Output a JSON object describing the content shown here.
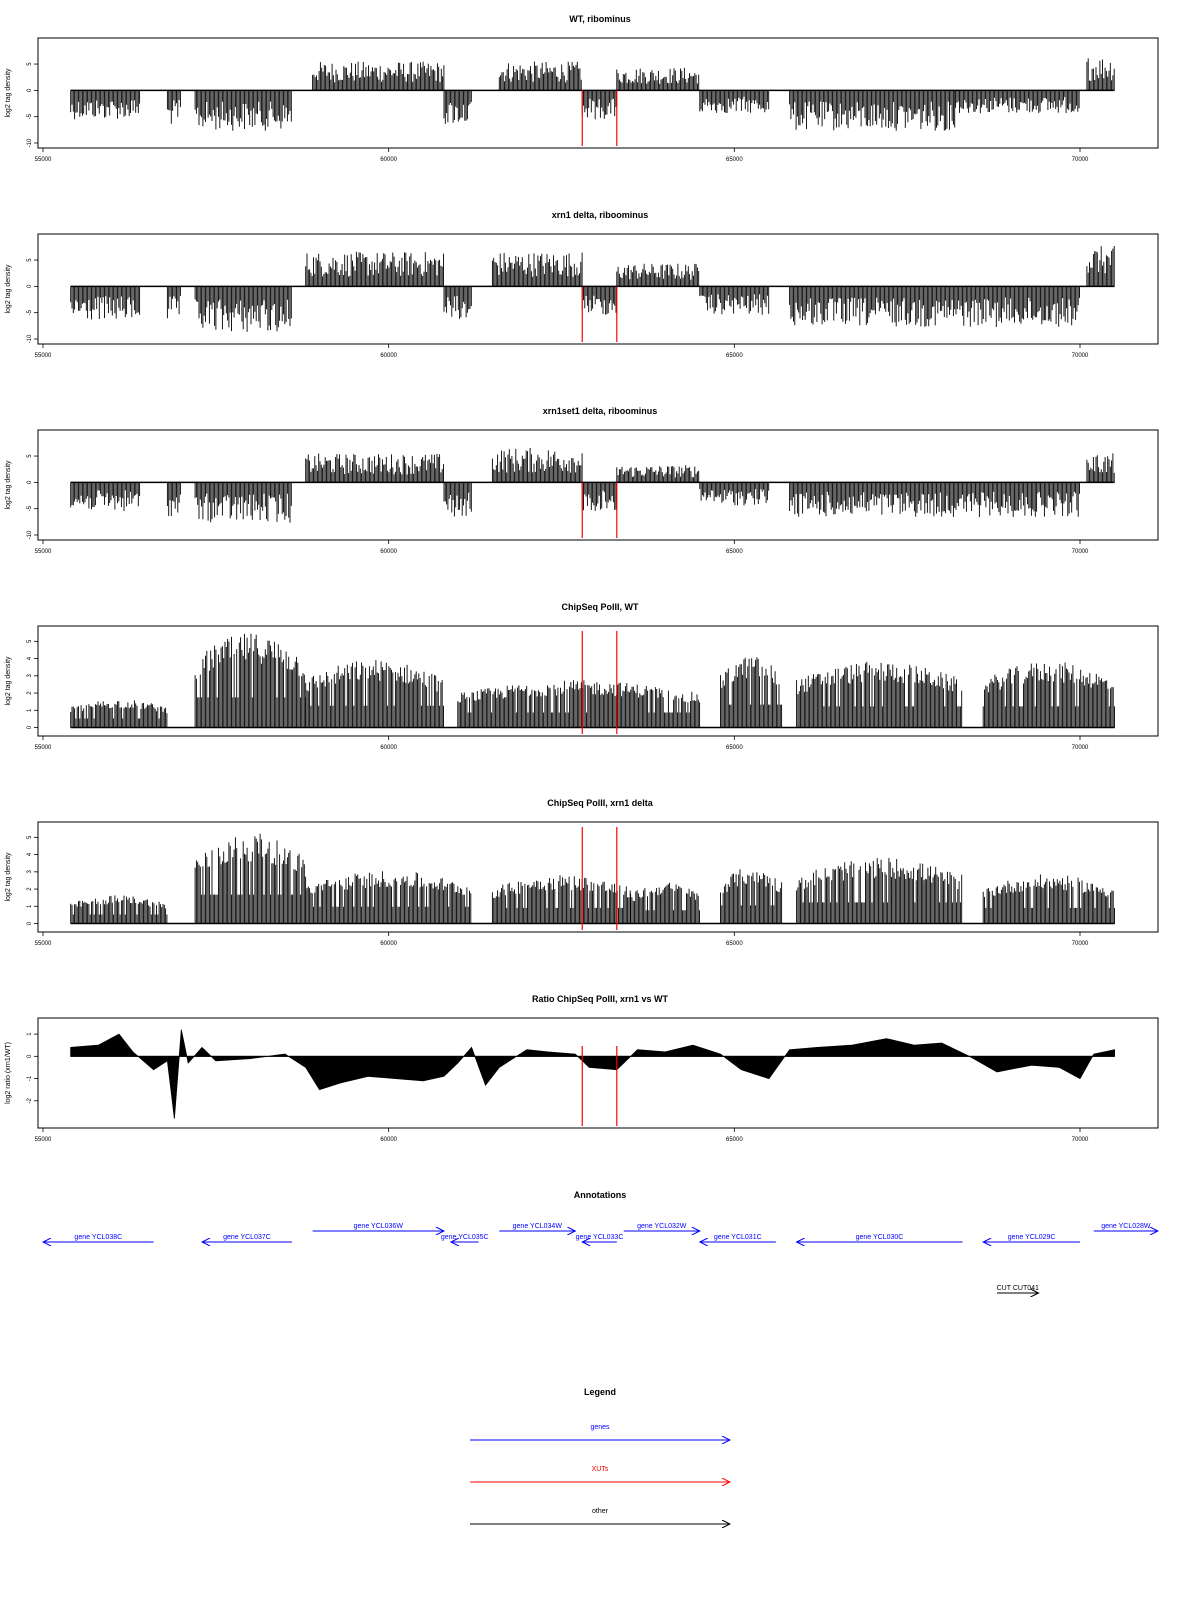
{
  "chart_data": {
    "type": "area",
    "xlim": [
      55000,
      71000
    ],
    "x_ticks": [
      "55000",
      "60000",
      "65000",
      "70000"
    ],
    "panels": [
      {
        "title": "WT, ribominus",
        "ylabel": "log2 tag density",
        "ylim": [
          -10,
          9
        ],
        "y_ticks": [
          "-10",
          "-5",
          "0",
          "5"
        ],
        "segments": [
          {
            "x": [
              55400,
              56400
            ],
            "value": -5
          },
          {
            "x": [
              56800,
              57000
            ],
            "value": -6
          },
          {
            "x": [
              57200,
              58600
            ],
            "value": -7
          },
          {
            "x": [
              58900,
              60800
            ],
            "value": 5
          },
          {
            "x": [
              60800,
              61200
            ],
            "value": -6
          },
          {
            "x": [
              61600,
              62800
            ],
            "value": 5
          },
          {
            "x": [
              62800,
              63300
            ],
            "value": -5
          },
          {
            "x": [
              63300,
              64500
            ],
            "value": 4
          },
          {
            "x": [
              64500,
              65500
            ],
            "value": -4
          },
          {
            "x": [
              65800,
              68200
            ],
            "value": -7
          },
          {
            "x": [
              68200,
              70000
            ],
            "value": -4
          },
          {
            "x": [
              70100,
              70500
            ],
            "value": 6
          }
        ]
      },
      {
        "title": "xrn1 delta, riboominus",
        "ylabel": "log2 tag density",
        "ylim": [
          -10,
          9
        ],
        "y_ticks": [
          "-10",
          "-5",
          "0",
          "5"
        ],
        "segments": [
          {
            "x": [
              55400,
              56400
            ],
            "value": -6
          },
          {
            "x": [
              56800,
              57000
            ],
            "value": -6
          },
          {
            "x": [
              57200,
              58600
            ],
            "value": -8
          },
          {
            "x": [
              58800,
              60800
            ],
            "value": 6
          },
          {
            "x": [
              60800,
              61200
            ],
            "value": -6
          },
          {
            "x": [
              61500,
              62800
            ],
            "value": 6
          },
          {
            "x": [
              62800,
              63300
            ],
            "value": -5
          },
          {
            "x": [
              63300,
              64500
            ],
            "value": 4
          },
          {
            "x": [
              64500,
              65500
            ],
            "value": -5
          },
          {
            "x": [
              65800,
              70000
            ],
            "value": -7
          },
          {
            "x": [
              70100,
              70500
            ],
            "value": 7
          }
        ]
      },
      {
        "title": "xrn1set1 delta, riboominus",
        "ylabel": "log2 tag density",
        "ylim": [
          -10,
          9
        ],
        "y_ticks": [
          "-10",
          "-5",
          "0",
          "5"
        ],
        "segments": [
          {
            "x": [
              55400,
              56400
            ],
            "value": -5
          },
          {
            "x": [
              56800,
              57000
            ],
            "value": -6
          },
          {
            "x": [
              57200,
              58600
            ],
            "value": -7
          },
          {
            "x": [
              58800,
              60800
            ],
            "value": 5
          },
          {
            "x": [
              60800,
              61200
            ],
            "value": -6
          },
          {
            "x": [
              61500,
              62800
            ],
            "value": 6
          },
          {
            "x": [
              62800,
              63300
            ],
            "value": -5
          },
          {
            "x": [
              63300,
              64500
            ],
            "value": 3
          },
          {
            "x": [
              64500,
              65500
            ],
            "value": -4
          },
          {
            "x": [
              65800,
              70000
            ],
            "value": -6
          },
          {
            "x": [
              70100,
              70500
            ],
            "value": 5
          }
        ]
      },
      {
        "title": "ChipSeq PolII, WT",
        "ylabel": "log2 tag density",
        "ylim": [
          -0.2,
          5.6
        ],
        "y_ticks": [
          "0",
          "1",
          "2",
          "3",
          "4",
          "5"
        ],
        "segments": [
          {
            "x": [
              55400,
              56800
            ],
            "value": 1.5
          },
          {
            "x": [
              57200,
              58800
            ],
            "value": 5.0
          },
          {
            "x": [
              58800,
              60800
            ],
            "value": 3.6
          },
          {
            "x": [
              61000,
              64500
            ],
            "value": 2.5
          },
          {
            "x": [
              64800,
              65700
            ],
            "value": 3.8
          },
          {
            "x": [
              65900,
              68300
            ],
            "value": 3.5
          },
          {
            "x": [
              68600,
              70500
            ],
            "value": 3.5
          }
        ]
      },
      {
        "title": "ChipSeq PolII, xrn1 delta",
        "ylabel": "log2 tag density",
        "ylim": [
          -0.2,
          5.6
        ],
        "y_ticks": [
          "0",
          "1",
          "2",
          "3",
          "4",
          "5"
        ],
        "segments": [
          {
            "x": [
              55400,
              56800
            ],
            "value": 1.5
          },
          {
            "x": [
              57200,
              58800
            ],
            "value": 4.8
          },
          {
            "x": [
              58800,
              61200
            ],
            "value": 2.8
          },
          {
            "x": [
              61500,
              63500
            ],
            "value": 2.6
          },
          {
            "x": [
              63500,
              64500
            ],
            "value": 2.2
          },
          {
            "x": [
              64800,
              65700
            ],
            "value": 3.0
          },
          {
            "x": [
              65900,
              68300
            ],
            "value": 3.5
          },
          {
            "x": [
              68600,
              70500
            ],
            "value": 2.6
          }
        ]
      },
      {
        "title": "Ratio ChipSeq PolII, xrn1 vs WT",
        "ylabel": "log2 ratio (xrn1/WT)",
        "ylim": [
          -3,
          1.5
        ],
        "y_ticks": [
          "-2",
          "-1",
          "0",
          "1"
        ],
        "curve": [
          [
            55400,
            0.4
          ],
          [
            55800,
            0.5
          ],
          [
            56100,
            1.0
          ],
          [
            56300,
            0.2
          ],
          [
            56600,
            -0.6
          ],
          [
            56800,
            -0.2
          ],
          [
            56900,
            -2.8
          ],
          [
            57000,
            1.2
          ],
          [
            57100,
            -0.3
          ],
          [
            57300,
            0.4
          ],
          [
            57500,
            -0.2
          ],
          [
            58000,
            -0.1
          ],
          [
            58500,
            0.1
          ],
          [
            58800,
            -0.5
          ],
          [
            59000,
            -1.5
          ],
          [
            59300,
            -1.2
          ],
          [
            59700,
            -0.9
          ],
          [
            60100,
            -1.0
          ],
          [
            60500,
            -1.1
          ],
          [
            60800,
            -0.9
          ],
          [
            61000,
            -0.3
          ],
          [
            61200,
            0.4
          ],
          [
            61400,
            -1.3
          ],
          [
            61600,
            -0.5
          ],
          [
            62000,
            0.3
          ],
          [
            62300,
            0.2
          ],
          [
            62700,
            0.1
          ],
          [
            62900,
            -0.5
          ],
          [
            63300,
            -0.6
          ],
          [
            63600,
            0.3
          ],
          [
            64000,
            0.2
          ],
          [
            64400,
            0.5
          ],
          [
            64800,
            0.1
          ],
          [
            65100,
            -0.6
          ],
          [
            65500,
            -1.0
          ],
          [
            65800,
            0.3
          ],
          [
            66200,
            0.4
          ],
          [
            66700,
            0.5
          ],
          [
            67200,
            0.8
          ],
          [
            67600,
            0.5
          ],
          [
            68000,
            0.6
          ],
          [
            68400,
            0.0
          ],
          [
            68800,
            -0.7
          ],
          [
            69300,
            -0.4
          ],
          [
            69700,
            -0.5
          ],
          [
            70000,
            -1.0
          ],
          [
            70200,
            0.1
          ],
          [
            70500,
            0.3
          ]
        ]
      }
    ],
    "markers": [
      62800,
      63300
    ],
    "marker_color": "#ff0000",
    "annotations_title": "Annotations",
    "genes": [
      {
        "label": "gene YCL038C",
        "x1": 55000,
        "x2": 56600,
        "strand": "-",
        "row": 1
      },
      {
        "label": "gene YCL037C",
        "x1": 57300,
        "x2": 58600,
        "strand": "-",
        "row": 1
      },
      {
        "label": "gene YCL036W",
        "x1": 58900,
        "x2": 60800,
        "strand": "+",
        "row": 0
      },
      {
        "label": "gene YCL035C",
        "x1": 60900,
        "x2": 61300,
        "strand": "-",
        "row": 1
      },
      {
        "label": "gene YCL034W",
        "x1": 61600,
        "x2": 62700,
        "strand": "+",
        "row": 0
      },
      {
        "label": "gene YCL033C",
        "x1": 62800,
        "x2": 63300,
        "strand": "-",
        "row": 1
      },
      {
        "label": "gene YCL032W",
        "x1": 63400,
        "x2": 64500,
        "strand": "+",
        "row": 0
      },
      {
        "label": "gene YCL031C",
        "x1": 64500,
        "x2": 65600,
        "strand": "-",
        "row": 1
      },
      {
        "label": "gene YCL030C",
        "x1": 65900,
        "x2": 68300,
        "strand": "-",
        "row": 1
      },
      {
        "label": "gene YCL029C",
        "x1": 68600,
        "x2": 70000,
        "strand": "-",
        "row": 1
      },
      {
        "label": "gene YCL028W",
        "x1": 70200,
        "x2": 71300,
        "strand": "+",
        "row": 0
      }
    ],
    "other_features": [
      {
        "label": "CUT CUT041",
        "x1": 68800,
        "x2": 69400,
        "strand": "+"
      }
    ],
    "legend_title": "Legend",
    "legend": [
      {
        "label": "genes",
        "color": "#0000ff"
      },
      {
        "label": "XUTs",
        "color": "#ff0000"
      },
      {
        "label": "other",
        "color": "#000000"
      }
    ],
    "colors": {
      "signal": "#000000",
      "gene": "#0000ff",
      "xut": "#ff0000",
      "other": "#000000"
    }
  }
}
